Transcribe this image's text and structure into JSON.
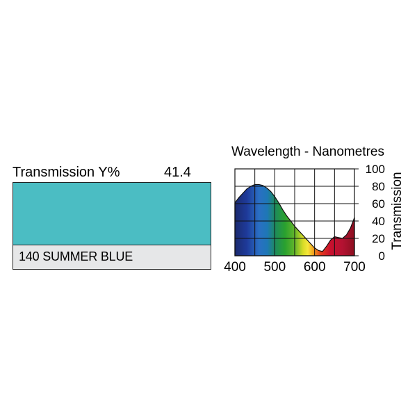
{
  "transmission": {
    "label": "Transmission Y%",
    "value": "41.4"
  },
  "filter": {
    "name": "140 SUMMER BLUE",
    "swatch_color": "#4bbdc3",
    "name_bar_color": "#e6e7e8"
  },
  "chart_data": {
    "type": "area",
    "title": "Wavelength - Nanometres",
    "xlabel": "",
    "ylabel": "Transmission",
    "xlim": [
      400,
      700
    ],
    "ylim": [
      0,
      100
    ],
    "x_ticks": [
      "400",
      "500",
      "600",
      "700"
    ],
    "y_ticks": [
      "0",
      "20",
      "40",
      "60",
      "80",
      "100"
    ],
    "grid": true,
    "fill": "visible-spectrum gradient",
    "series": [
      {
        "x": [
          400,
          410,
          420,
          430,
          440,
          450,
          460,
          470,
          480,
          490,
          500,
          510,
          520,
          530,
          540,
          550,
          560,
          570,
          580,
          590,
          600,
          610,
          620,
          630,
          640,
          650,
          660,
          670,
          680,
          690,
          700
        ],
        "values": [
          61,
          67,
          72,
          77,
          80,
          82,
          82,
          81,
          78,
          74,
          68,
          61,
          53,
          46,
          40,
          34,
          29,
          24,
          19,
          14,
          9,
          6,
          5,
          11,
          18,
          22,
          21,
          20,
          24,
          32,
          44
        ]
      }
    ]
  }
}
